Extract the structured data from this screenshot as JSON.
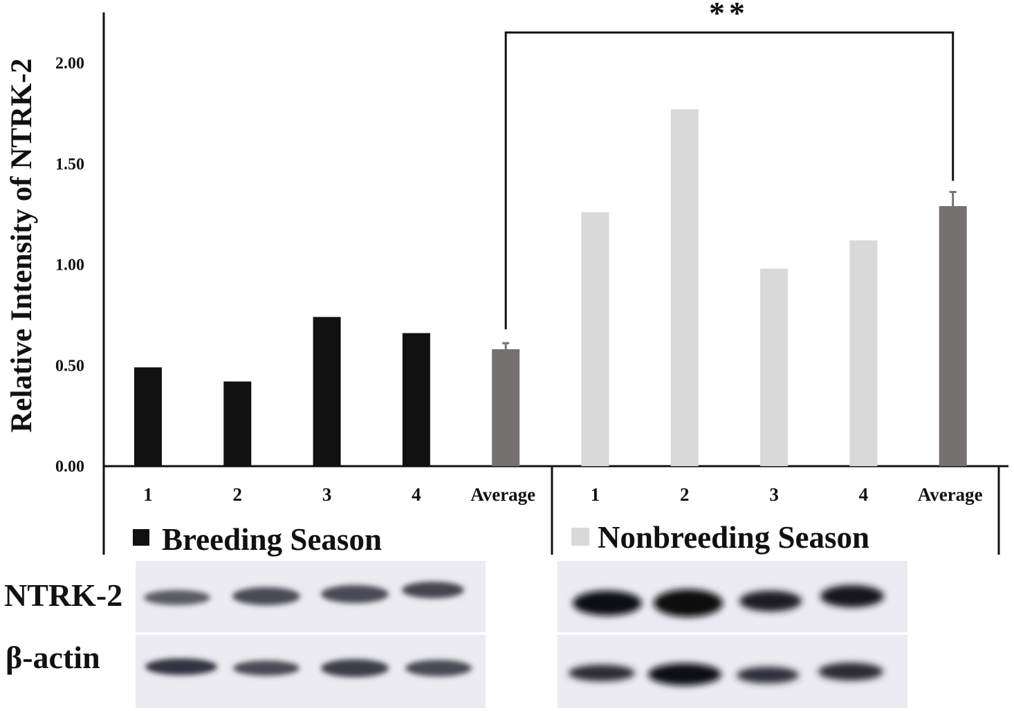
{
  "chart_data": {
    "type": "bar",
    "ylabel": "Relative Intensity of NTRK-2",
    "xlabel": "",
    "ylim": [
      0,
      2.25
    ],
    "yticks": [
      "0.00",
      "0.50",
      "1.00",
      "1.50",
      "2.00"
    ],
    "ytick_values": [
      0,
      0.5,
      1.0,
      1.5,
      2.0
    ],
    "categories": [
      "1",
      "2",
      "3",
      "4",
      "Average",
      "1",
      "2",
      "3",
      "4",
      "Average"
    ],
    "groups": [
      {
        "name": "Breeding Season",
        "categories": [
          "1",
          "2",
          "3",
          "4",
          "Average"
        ],
        "values": [
          0.49,
          0.42,
          0.74,
          0.66,
          0.58
        ],
        "errors": [
          null,
          null,
          null,
          null,
          0.03
        ],
        "colors": [
          "#111111",
          "#111111",
          "#111111",
          "#111111",
          "#767171"
        ]
      },
      {
        "name": "Nonbreeding Season",
        "categories": [
          "1",
          "2",
          "3",
          "4",
          "Average"
        ],
        "values": [
          1.26,
          1.77,
          0.98,
          1.12,
          1.29
        ],
        "errors": [
          null,
          null,
          null,
          null,
          0.07
        ],
        "colors": [
          "#d9d9d9",
          "#d9d9d9",
          "#d9d9d9",
          "#d9d9d9",
          "#767171"
        ]
      }
    ],
    "legend": [
      {
        "label": "Breeding Season",
        "color": "#111111"
      },
      {
        "label": "Nonbreeding Season",
        "color": "#d9d9d9"
      }
    ],
    "significance": "**",
    "grid": false
  },
  "blot": {
    "rows": [
      "NTRK-2",
      "β-actin"
    ]
  }
}
